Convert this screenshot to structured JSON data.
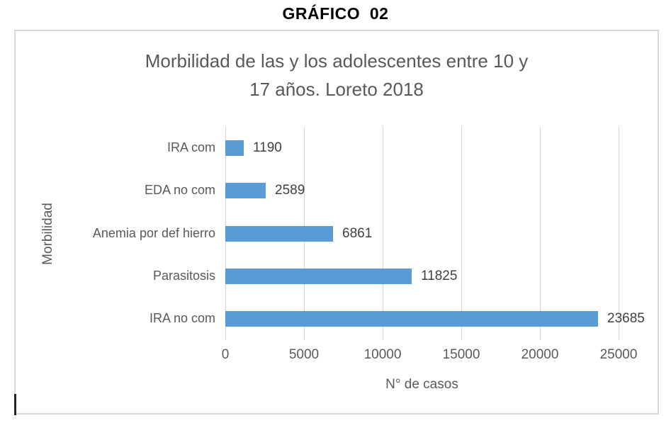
{
  "page": {
    "heading": "GRÁFICO  02"
  },
  "chart": {
    "title_line1": "Morbilidad de las y los adolescentes entre 10 y",
    "title_line2": "17 años. Loreto 2018",
    "xlabel": "N° de casos",
    "ylabel": "Morbilidad"
  },
  "chart_data": {
    "type": "bar",
    "orientation": "horizontal",
    "title": "Morbilidad de las y los adolescentes entre 10 y 17 años. Loreto 2018",
    "categories": [
      "IRA com",
      "EDA no com",
      "Anemia por def hierro",
      "Parasitosis",
      "IRA no com"
    ],
    "categories_order": "top-to-bottom",
    "values": [
      1190,
      2589,
      6861,
      11825,
      23685
    ],
    "data_labels": [
      "1190",
      "2589",
      "6861",
      "11825",
      "23685"
    ],
    "xlabel": "N° de casos",
    "ylabel": "Morbilidad",
    "xlim": [
      0,
      25000
    ],
    "xticks": [
      0,
      5000,
      10000,
      15000,
      20000,
      25000
    ],
    "grid": true,
    "legend": false,
    "colors": {
      "bar": "#5B9BD5",
      "gridline": "#D6D6D6",
      "frame_border": "#D9D9D9",
      "title_text": "#595959",
      "axis_text": "#595959",
      "value_text": "#404040",
      "heading_text": "#000000"
    }
  }
}
